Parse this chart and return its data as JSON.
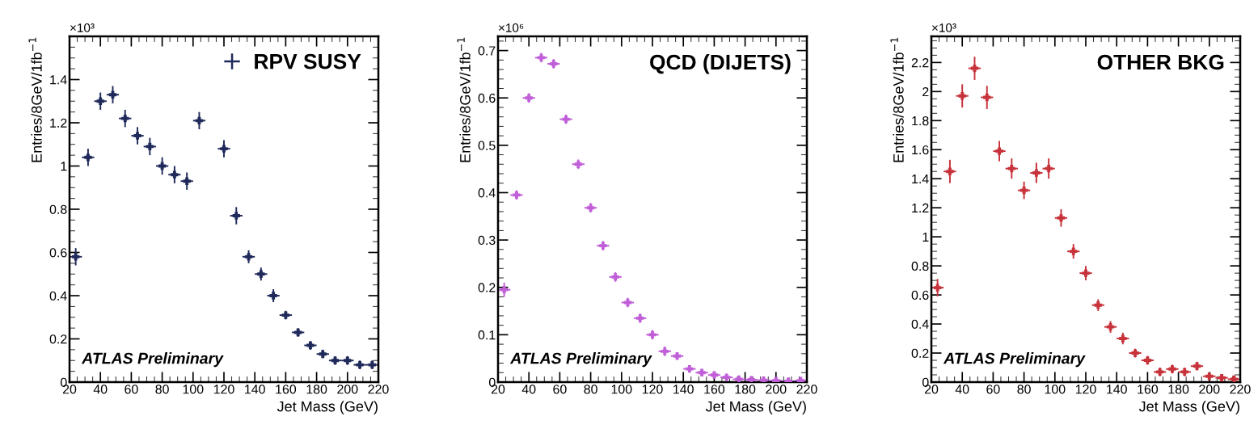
{
  "chart_data": [
    {
      "type": "scatter",
      "xlabel": "Jet Mass (GeV)",
      "ylabel": "Entries/8GeV/1fb$^{−1}$",
      "annotations": [
        "×10³",
        "ATLAS Preliminary"
      ],
      "x": [
        24,
        32,
        40,
        48,
        56,
        64,
        72,
        80,
        88,
        96,
        104,
        112,
        120,
        128,
        136,
        144,
        152,
        160,
        168,
        176,
        184,
        192,
        200,
        208,
        216
      ],
      "series": [
        {
          "name": "RPV SUSY",
          "color": "#1f2a5a",
          "values": [
            0.58,
            1.04,
            1.3,
            1.33,
            1.22,
            1.14,
            1.09,
            1.0,
            0.96,
            0.93,
            1.21,
            null,
            1.08,
            0.77,
            0.58,
            0.5,
            0.4,
            0.31,
            0.23,
            0.17,
            0.13,
            0.1,
            0.1,
            0.08,
            0.08
          ],
          "errors": [
            0.04,
            0.04,
            0.04,
            0.04,
            0.04,
            0.04,
            0.04,
            0.04,
            0.04,
            0.04,
            0.04,
            null,
            0.04,
            0.04,
            0.03,
            0.03,
            0.03,
            0.02,
            0.02,
            0.02,
            0.02,
            0.02,
            0.02,
            0.02,
            0.02
          ],
          "xerrors": [
            4,
            4,
            4,
            4,
            4,
            4,
            4,
            4,
            4,
            4,
            4,
            null,
            4,
            4,
            4,
            4,
            4,
            4,
            4,
            4,
            4,
            4,
            4,
            4,
            4
          ]
        }
      ],
      "marker": "cross",
      "legend": "top right",
      "grid": false,
      "xlim": [
        20,
        220
      ],
      "xticks": [
        20,
        40,
        60,
        80,
        100,
        120,
        140,
        160,
        180,
        200,
        220
      ],
      "ylim": [
        0,
        1.6
      ],
      "yticks": [
        0,
        0.2,
        0.4,
        0.6,
        0.8,
        1,
        1.2,
        1.4
      ]
    },
    {
      "type": "scatter",
      "title": "QCD (DIJETS)",
      "xlabel": "Jet Mass (GeV)",
      "ylabel": "Entries/8GeV/1fb$^{−1}$",
      "annotations": [
        "×10⁶",
        "ATLAS Preliminary"
      ],
      "x": [
        24,
        32,
        40,
        48,
        56,
        64,
        72,
        80,
        88,
        96,
        104,
        112,
        120,
        128,
        136,
        144,
        152,
        160,
        168,
        176,
        184,
        192,
        200,
        208,
        216
      ],
      "series": [
        {
          "color": "#c05fd8",
          "values": [
            0.195,
            0.395,
            0.6,
            0.685,
            0.672,
            0.555,
            0.46,
            0.368,
            0.288,
            0.222,
            0.168,
            0.135,
            0.1,
            0.065,
            0.055,
            0.028,
            0.02,
            0.015,
            0.01,
            0.006,
            0.005,
            0.004,
            0.003,
            0.002,
            0.003
          ],
          "errors": [
            0.015,
            0.01,
            0.01,
            0.01,
            0.01,
            0.01,
            0.01,
            0.01,
            0.01,
            0.01,
            0.01,
            0.01,
            0.01,
            0.01,
            0.005,
            0.005,
            0.005,
            0.005,
            0.005,
            0.003,
            0.003,
            0.003,
            0.002,
            0.002,
            0.002
          ],
          "xerrors": [
            4,
            4,
            4,
            4,
            4,
            4,
            4,
            4,
            4,
            4,
            4,
            4,
            4,
            4,
            4,
            4,
            4,
            4,
            4,
            4,
            4,
            4,
            4,
            4,
            4
          ]
        }
      ],
      "marker": "cross",
      "grid": false,
      "xlim": [
        20,
        220
      ],
      "xticks": [
        20,
        40,
        60,
        80,
        100,
        120,
        140,
        160,
        180,
        200,
        220
      ],
      "ylim": [
        0,
        0.73
      ],
      "yticks": [
        0,
        0.1,
        0.2,
        0.3,
        0.4,
        0.5,
        0.6,
        0.7
      ]
    },
    {
      "type": "scatter",
      "title": "OTHER BKG",
      "xlabel": "Jet Mass (GeV)",
      "ylabel": "Entries/8GeV/1fb$^{−1}$",
      "annotations": [
        "×10³",
        "ATLAS Preliminary"
      ],
      "x": [
        24,
        32,
        40,
        48,
        56,
        64,
        72,
        80,
        88,
        96,
        104,
        112,
        120,
        128,
        136,
        144,
        152,
        160,
        168,
        176,
        184,
        192,
        200,
        208,
        216
      ],
      "series": [
        {
          "color": "#c8323a",
          "values": [
            0.65,
            1.45,
            1.97,
            2.16,
            1.96,
            1.59,
            1.47,
            1.32,
            1.44,
            1.47,
            1.13,
            0.9,
            0.75,
            0.53,
            0.38,
            0.3,
            0.2,
            0.15,
            0.07,
            0.09,
            0.07,
            0.11,
            0.04,
            0.03,
            0.02
          ],
          "errors": [
            0.06,
            0.08,
            0.08,
            0.08,
            0.08,
            0.07,
            0.07,
            0.06,
            0.07,
            0.07,
            0.06,
            0.05,
            0.05,
            0.04,
            0.04,
            0.04,
            0.03,
            0.03,
            0.03,
            0.03,
            0.03,
            0.03,
            0.02,
            0.015,
            0.01
          ],
          "xerrors": [
            4,
            4,
            4,
            4,
            4,
            4,
            4,
            4,
            4,
            4,
            4,
            4,
            4,
            4,
            4,
            4,
            4,
            4,
            4,
            4,
            4,
            4,
            4,
            4,
            4
          ]
        }
      ],
      "marker": "cross",
      "grid": false,
      "xlim": [
        20,
        220
      ],
      "xticks": [
        20,
        40,
        60,
        80,
        100,
        120,
        140,
        160,
        180,
        200,
        220
      ],
      "ylim": [
        0,
        2.38
      ],
      "yticks": [
        0,
        0.2,
        0.4,
        0.6,
        0.8,
        1,
        1.2,
        1.4,
        1.6,
        1.8,
        2,
        2.2
      ]
    }
  ]
}
